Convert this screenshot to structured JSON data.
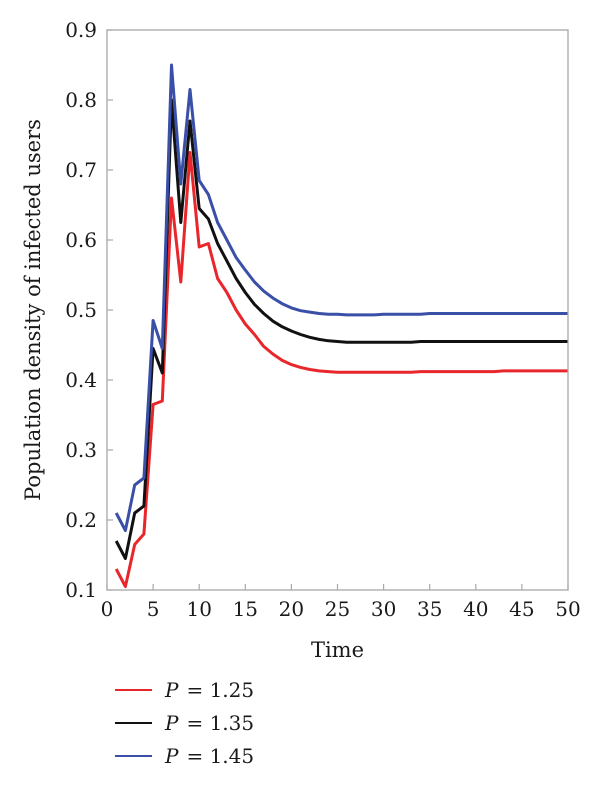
{
  "chart_data": {
    "type": "line",
    "title": "",
    "xlabel": "Time",
    "ylabel": "Population density of infected users",
    "xlim": [
      0,
      50
    ],
    "ylim": [
      0.1,
      0.9
    ],
    "xticks": [
      0,
      5,
      10,
      15,
      20,
      25,
      30,
      35,
      40,
      45,
      50
    ],
    "yticks": [
      0.1,
      0.2,
      0.3,
      0.4,
      0.5,
      0.6,
      0.7,
      0.8,
      0.9
    ],
    "grid": false,
    "legend_position": "bottom-left",
    "x": [
      1,
      2,
      3,
      4,
      5,
      6,
      7,
      8,
      9,
      10,
      11,
      12,
      13,
      14,
      15,
      16,
      17,
      18,
      19,
      20,
      21,
      22,
      23,
      24,
      25,
      26,
      27,
      28,
      29,
      30,
      31,
      32,
      33,
      34,
      35,
      36,
      37,
      38,
      39,
      40,
      41,
      42,
      43,
      44,
      45,
      46,
      47,
      48,
      49,
      50
    ],
    "series": [
      {
        "name": "P = 1.25",
        "legend_var": "P",
        "legend_val": "= 1.25",
        "color": "#e8262b",
        "values": [
          0.13,
          0.105,
          0.165,
          0.18,
          0.365,
          0.37,
          0.66,
          0.54,
          0.725,
          0.59,
          0.595,
          0.545,
          0.525,
          0.5,
          0.48,
          0.465,
          0.448,
          0.437,
          0.428,
          0.422,
          0.418,
          0.415,
          0.413,
          0.412,
          0.411,
          0.411,
          0.411,
          0.411,
          0.411,
          0.411,
          0.411,
          0.411,
          0.411,
          0.412,
          0.412,
          0.412,
          0.412,
          0.412,
          0.412,
          0.412,
          0.412,
          0.412,
          0.413,
          0.413,
          0.413,
          0.413,
          0.413,
          0.413,
          0.413,
          0.413
        ]
      },
      {
        "name": "P = 1.35",
        "legend_var": "P",
        "legend_val": "= 1.35",
        "color": "#111111",
        "values": [
          0.17,
          0.145,
          0.21,
          0.22,
          0.445,
          0.41,
          0.8,
          0.625,
          0.77,
          0.645,
          0.63,
          0.595,
          0.57,
          0.545,
          0.525,
          0.508,
          0.495,
          0.484,
          0.476,
          0.47,
          0.465,
          0.461,
          0.458,
          0.456,
          0.455,
          0.454,
          0.454,
          0.454,
          0.454,
          0.454,
          0.454,
          0.454,
          0.454,
          0.455,
          0.455,
          0.455,
          0.455,
          0.455,
          0.455,
          0.455,
          0.455,
          0.455,
          0.455,
          0.455,
          0.455,
          0.455,
          0.455,
          0.455,
          0.455,
          0.455
        ]
      },
      {
        "name": "P = 1.45",
        "legend_var": "P",
        "legend_val": "= 1.45",
        "color": "#3a4fa8",
        "values": [
          0.21,
          0.185,
          0.25,
          0.26,
          0.485,
          0.445,
          0.85,
          0.68,
          0.815,
          0.685,
          0.665,
          0.625,
          0.6,
          0.575,
          0.557,
          0.54,
          0.527,
          0.517,
          0.509,
          0.503,
          0.499,
          0.497,
          0.495,
          0.494,
          0.494,
          0.493,
          0.493,
          0.493,
          0.493,
          0.494,
          0.494,
          0.494,
          0.494,
          0.494,
          0.495,
          0.495,
          0.495,
          0.495,
          0.495,
          0.495,
          0.495,
          0.495,
          0.495,
          0.495,
          0.495,
          0.495,
          0.495,
          0.495,
          0.495,
          0.495
        ]
      }
    ]
  }
}
